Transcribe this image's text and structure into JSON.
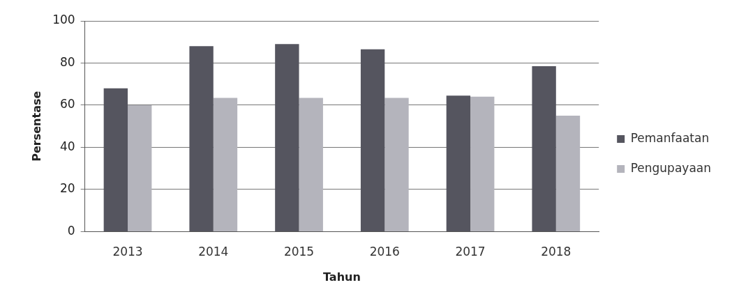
{
  "chart_data": {
    "type": "bar",
    "xlabel": "Tahun",
    "ylabel": "Persentase",
    "categories": [
      "2013",
      "2014",
      "2015",
      "2016",
      "2017",
      "2018"
    ],
    "series": [
      {
        "name": "Pemanfaatan",
        "color": "#55555f",
        "values": [
          68,
          88,
          89,
          86.5,
          64.5,
          78.5
        ]
      },
      {
        "name": "Pengupayaan",
        "color": "#b4b4bc",
        "values": [
          60,
          63.5,
          63.5,
          63.5,
          64,
          55
        ]
      }
    ],
    "ylim": [
      0,
      100
    ],
    "yticks": [
      0,
      20,
      40,
      60,
      80,
      100
    ],
    "grid": "y",
    "legend": "right"
  }
}
